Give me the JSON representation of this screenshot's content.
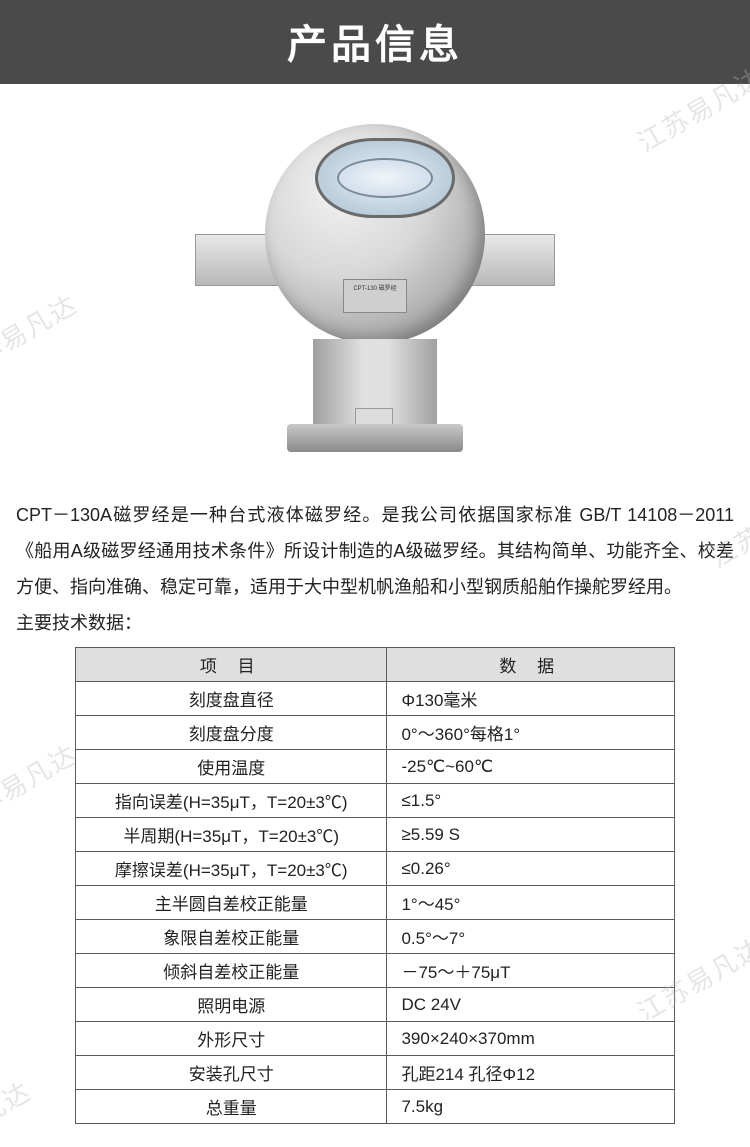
{
  "header": {
    "title": "产品信息"
  },
  "watermarks": [
    "江苏易凡达",
    "苏易凡达",
    "江苏易",
    "苏易凡达",
    "江苏易凡达",
    "易凡达"
  ],
  "product_label": "CPT-130 磁罗经",
  "description": "CPT－130A磁罗经是一种台式液体磁罗经。是我公司依据国家标准 GB/T 14108－2011《船用A级磁罗经通用技术条件》所设计制造的A级磁罗经。其结构简单、功能齐全、校差方便、指向准确、稳定可靠，适用于大中型机帆渔船和小型钢质船舶作操舵罗经用。",
  "subhead": "主要技术数据：",
  "table": {
    "headers": [
      "项  目",
      "数  据"
    ],
    "col_widths": [
      "52%",
      "48%"
    ],
    "header_bg": "#dfdfdf",
    "border_color": "#5a5a5a",
    "font_size": 17,
    "rows": [
      {
        "label": "刻度盘直径",
        "value": "Φ130毫米"
      },
      {
        "label": "刻度盘分度",
        "value": "0°～360°每格1°"
      },
      {
        "label": "使用温度",
        "value": "-25℃~60℃"
      },
      {
        "label": "指向误差(H=35μT，T=20±3℃)",
        "value": "≤1.5°"
      },
      {
        "label": "半周期(H=35μT，T=20±3℃)",
        "value": "≥5.59 S"
      },
      {
        "label": "摩擦误差(H=35μT，T=20±3℃)",
        "value": "≤0.26°"
      },
      {
        "label": "主半圆自差校正能量",
        "value": "1°～45°"
      },
      {
        "label": "象限自差校正能量",
        "value": "0.5°～7°"
      },
      {
        "label": "倾斜自差校正能量",
        "value": "－75～＋75μT"
      },
      {
        "label": "照明电源",
        "value": "DC 24V"
      },
      {
        "label": "外形尺寸",
        "value": "390×240×370mm"
      },
      {
        "label": "安装孔尺寸",
        "value": "孔距214  孔径Φ12"
      },
      {
        "label": "总重量",
        "value": "7.5kg"
      }
    ]
  },
  "colors": {
    "header_bg": "#4a4a4a",
    "header_text": "#ffffff",
    "body_text": "#222222",
    "watermark": "rgba(180,180,180,0.35)"
  }
}
